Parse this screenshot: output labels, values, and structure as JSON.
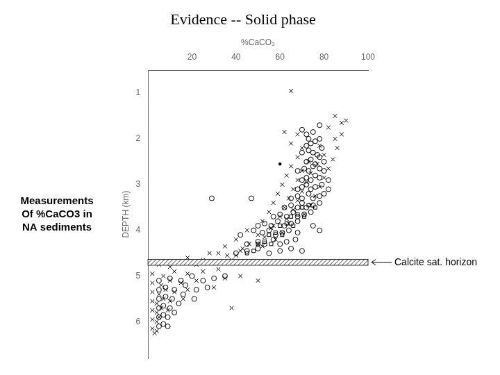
{
  "chart_data": {
    "type": "scatter",
    "title": "Evidence -- Solid phase",
    "xlabel": "%CaCO₃",
    "ylabel": "DEPTH (km)",
    "xlim": [
      0,
      100
    ],
    "ylim": [
      6.8,
      0.5
    ],
    "xticks": [
      20,
      40,
      60,
      80,
      100
    ],
    "yticks": [
      1,
      2,
      3,
      4,
      5,
      6
    ],
    "grid": false,
    "left_text": [
      "Measurements",
      "Of %CaCO3 in",
      "NA sediments"
    ],
    "band": {
      "center": 4.7,
      "thickness": 0.13,
      "x": [
        0,
        100
      ],
      "label": "Calcite sat. horizon"
    },
    "series": [
      {
        "marker": "circle",
        "color": "black",
        "values": [
          [
            29,
            3.3
          ],
          [
            47,
            3.3
          ],
          [
            70,
            1.8
          ],
          [
            72,
            1.9
          ],
          [
            75,
            1.85
          ],
          [
            78,
            1.7
          ],
          [
            73,
            2.0
          ],
          [
            76,
            2.05
          ],
          [
            72,
            2.15
          ],
          [
            74,
            2.1
          ],
          [
            78,
            2.0
          ],
          [
            70,
            2.3
          ],
          [
            73,
            2.25
          ],
          [
            75,
            2.3
          ],
          [
            77,
            2.35
          ],
          [
            79,
            2.2
          ],
          [
            72,
            2.5
          ],
          [
            74,
            2.45
          ],
          [
            76,
            2.55
          ],
          [
            78,
            2.4
          ],
          [
            80,
            2.5
          ],
          [
            68,
            2.7
          ],
          [
            71,
            2.65
          ],
          [
            73,
            2.7
          ],
          [
            75,
            2.6
          ],
          [
            78,
            2.65
          ],
          [
            80,
            2.7
          ],
          [
            70,
            2.9
          ],
          [
            72,
            2.85
          ],
          [
            74,
            2.9
          ],
          [
            76,
            2.8
          ],
          [
            78,
            2.85
          ],
          [
            82,
            2.9
          ],
          [
            68,
            3.1
          ],
          [
            70,
            3.05
          ],
          [
            72,
            3.0
          ],
          [
            74,
            3.1
          ],
          [
            76,
            3.05
          ],
          [
            79,
            3.0
          ],
          [
            82,
            3.1
          ],
          [
            65,
            3.3
          ],
          [
            68,
            3.25
          ],
          [
            70,
            3.3
          ],
          [
            73,
            3.2
          ],
          [
            75,
            3.3
          ],
          [
            78,
            3.25
          ],
          [
            80,
            3.2
          ],
          [
            62,
            3.5
          ],
          [
            65,
            3.45
          ],
          [
            68,
            3.5
          ],
          [
            70,
            3.4
          ],
          [
            72,
            3.5
          ],
          [
            75,
            3.45
          ],
          [
            78,
            3.4
          ],
          [
            57,
            3.7
          ],
          [
            60,
            3.65
          ],
          [
            63,
            3.7
          ],
          [
            66,
            3.6
          ],
          [
            68,
            3.7
          ],
          [
            71,
            3.65
          ],
          [
            74,
            3.6
          ],
          [
            50,
            3.9
          ],
          [
            53,
            3.85
          ],
          [
            56,
            3.9
          ],
          [
            59,
            3.8
          ],
          [
            62,
            3.9
          ],
          [
            65,
            3.85
          ],
          [
            68,
            3.8
          ],
          [
            75,
            3.9
          ],
          [
            42,
            4.1
          ],
          [
            48,
            4.0
          ],
          [
            52,
            4.05
          ],
          [
            55,
            4.0
          ],
          [
            58,
            4.1
          ],
          [
            61,
            4.05
          ],
          [
            64,
            4.0
          ],
          [
            68,
            4.05
          ],
          [
            78,
            4.0
          ],
          [
            45,
            4.3
          ],
          [
            50,
            4.25
          ],
          [
            53,
            4.3
          ],
          [
            57,
            4.2
          ],
          [
            60,
            4.3
          ],
          [
            63,
            4.25
          ],
          [
            67,
            4.2
          ],
          [
            40,
            4.5
          ],
          [
            45,
            4.45
          ],
          [
            50,
            4.4
          ],
          [
            55,
            4.5
          ],
          [
            60,
            4.45
          ],
          [
            65,
            4.4
          ],
          [
            70,
            4.45
          ],
          [
            5,
            5.1
          ],
          [
            10,
            5.05
          ],
          [
            15,
            5.1
          ],
          [
            20,
            5.0
          ],
          [
            25,
            5.1
          ],
          [
            30,
            5.05
          ],
          [
            35,
            5.0
          ],
          [
            5,
            5.3
          ],
          [
            8,
            5.25
          ],
          [
            12,
            5.3
          ],
          [
            17,
            5.2
          ],
          [
            22,
            5.3
          ],
          [
            27,
            5.25
          ],
          [
            5,
            5.5
          ],
          [
            8,
            5.45
          ],
          [
            11,
            5.5
          ],
          [
            16,
            5.4
          ],
          [
            21,
            5.5
          ],
          [
            5,
            5.7
          ],
          [
            7,
            5.65
          ],
          [
            10,
            5.7
          ],
          [
            14,
            5.6
          ],
          [
            5,
            5.9
          ],
          [
            7,
            5.85
          ],
          [
            9,
            5.9
          ],
          [
            12,
            5.8
          ],
          [
            5,
            6.1
          ],
          [
            7,
            6.05
          ],
          [
            9,
            6.1
          ]
        ]
      },
      {
        "marker": "x",
        "color": "black",
        "values": [
          [
            65,
            0.95
          ],
          [
            85,
            1.5
          ],
          [
            90,
            1.6
          ],
          [
            62,
            1.85
          ],
          [
            68,
            1.9
          ],
          [
            82,
            1.75
          ],
          [
            88,
            1.65
          ],
          [
            65,
            2.1
          ],
          [
            70,
            2.2
          ],
          [
            78,
            2.15
          ],
          [
            85,
            2.0
          ],
          [
            88,
            1.9
          ],
          [
            68,
            2.4
          ],
          [
            73,
            2.5
          ],
          [
            80,
            2.35
          ],
          [
            86,
            2.2
          ],
          [
            65,
            2.6
          ],
          [
            70,
            2.7
          ],
          [
            77,
            2.55
          ],
          [
            84,
            2.45
          ],
          [
            63,
            2.8
          ],
          [
            68,
            2.9
          ],
          [
            74,
            2.75
          ],
          [
            82,
            2.65
          ],
          [
            61,
            3.0
          ],
          [
            66,
            3.1
          ],
          [
            72,
            2.95
          ],
          [
            80,
            2.85
          ],
          [
            59,
            3.2
          ],
          [
            64,
            3.3
          ],
          [
            70,
            3.15
          ],
          [
            78,
            3.05
          ],
          [
            57,
            3.4
          ],
          [
            62,
            3.5
          ],
          [
            68,
            3.35
          ],
          [
            76,
            3.25
          ],
          [
            55,
            3.6
          ],
          [
            60,
            3.7
          ],
          [
            66,
            3.55
          ],
          [
            74,
            3.45
          ],
          [
            52,
            3.8
          ],
          [
            57,
            3.9
          ],
          [
            63,
            3.75
          ],
          [
            71,
            3.65
          ],
          [
            45,
            4.0
          ],
          [
            50,
            4.1
          ],
          [
            56,
            3.95
          ],
          [
            64,
            3.85
          ],
          [
            40,
            4.2
          ],
          [
            46,
            4.3
          ],
          [
            53,
            4.15
          ],
          [
            61,
            4.05
          ],
          [
            35,
            4.35
          ],
          [
            42,
            4.45
          ],
          [
            50,
            4.3
          ],
          [
            58,
            4.2
          ],
          [
            28,
            4.5
          ],
          [
            36,
            4.55
          ],
          [
            43,
            4.4
          ],
          [
            52,
            4.35
          ],
          [
            18,
            4.6
          ],
          [
            25,
            4.65
          ],
          [
            32,
            4.5
          ],
          [
            40,
            4.55
          ],
          [
            5,
            4.75
          ],
          [
            10,
            4.8
          ],
          [
            15,
            4.7
          ],
          [
            22,
            4.75
          ],
          [
            30,
            4.7
          ],
          [
            38,
            4.65
          ],
          [
            2,
            4.95
          ],
          [
            7,
            5.0
          ],
          [
            12,
            4.9
          ],
          [
            18,
            4.95
          ],
          [
            25,
            4.9
          ],
          [
            32,
            4.85
          ],
          [
            2,
            5.15
          ],
          [
            6,
            5.2
          ],
          [
            10,
            5.1
          ],
          [
            15,
            5.15
          ],
          [
            22,
            5.1
          ],
          [
            35,
            5.05
          ],
          [
            42,
            5.0
          ],
          [
            50,
            5.1
          ],
          [
            2,
            5.35
          ],
          [
            5,
            5.4
          ],
          [
            8,
            5.3
          ],
          [
            12,
            5.35
          ],
          [
            18,
            5.3
          ],
          [
            30,
            5.25
          ],
          [
            2,
            5.55
          ],
          [
            4,
            5.6
          ],
          [
            7,
            5.5
          ],
          [
            10,
            5.55
          ],
          [
            16,
            5.5
          ],
          [
            2,
            5.75
          ],
          [
            4,
            5.8
          ],
          [
            6,
            5.7
          ],
          [
            9,
            5.75
          ],
          [
            38,
            5.7
          ],
          [
            2,
            5.95
          ],
          [
            4,
            6.0
          ],
          [
            5,
            5.9
          ],
          [
            2,
            6.15
          ],
          [
            3,
            6.25
          ],
          [
            4,
            6.2
          ]
        ]
      },
      {
        "marker": "square",
        "color": "black",
        "values": [
          [
            70,
            3.5
          ],
          [
            73,
            3.45
          ],
          [
            76,
            3.5
          ],
          [
            65,
            3.7
          ],
          [
            68,
            3.65
          ],
          [
            71,
            3.7
          ],
          [
            60,
            3.9
          ],
          [
            63,
            3.85
          ],
          [
            66,
            3.9
          ],
          [
            55,
            4.1
          ],
          [
            58,
            4.05
          ],
          [
            61,
            4.1
          ],
          [
            50,
            4.3
          ],
          [
            53,
            4.25
          ],
          [
            56,
            4.3
          ],
          [
            45,
            4.5
          ],
          [
            48,
            4.45
          ]
        ]
      },
      {
        "marker": "dot",
        "color": "black",
        "values": [
          [
            60,
            2.55
          ]
        ]
      }
    ]
  }
}
